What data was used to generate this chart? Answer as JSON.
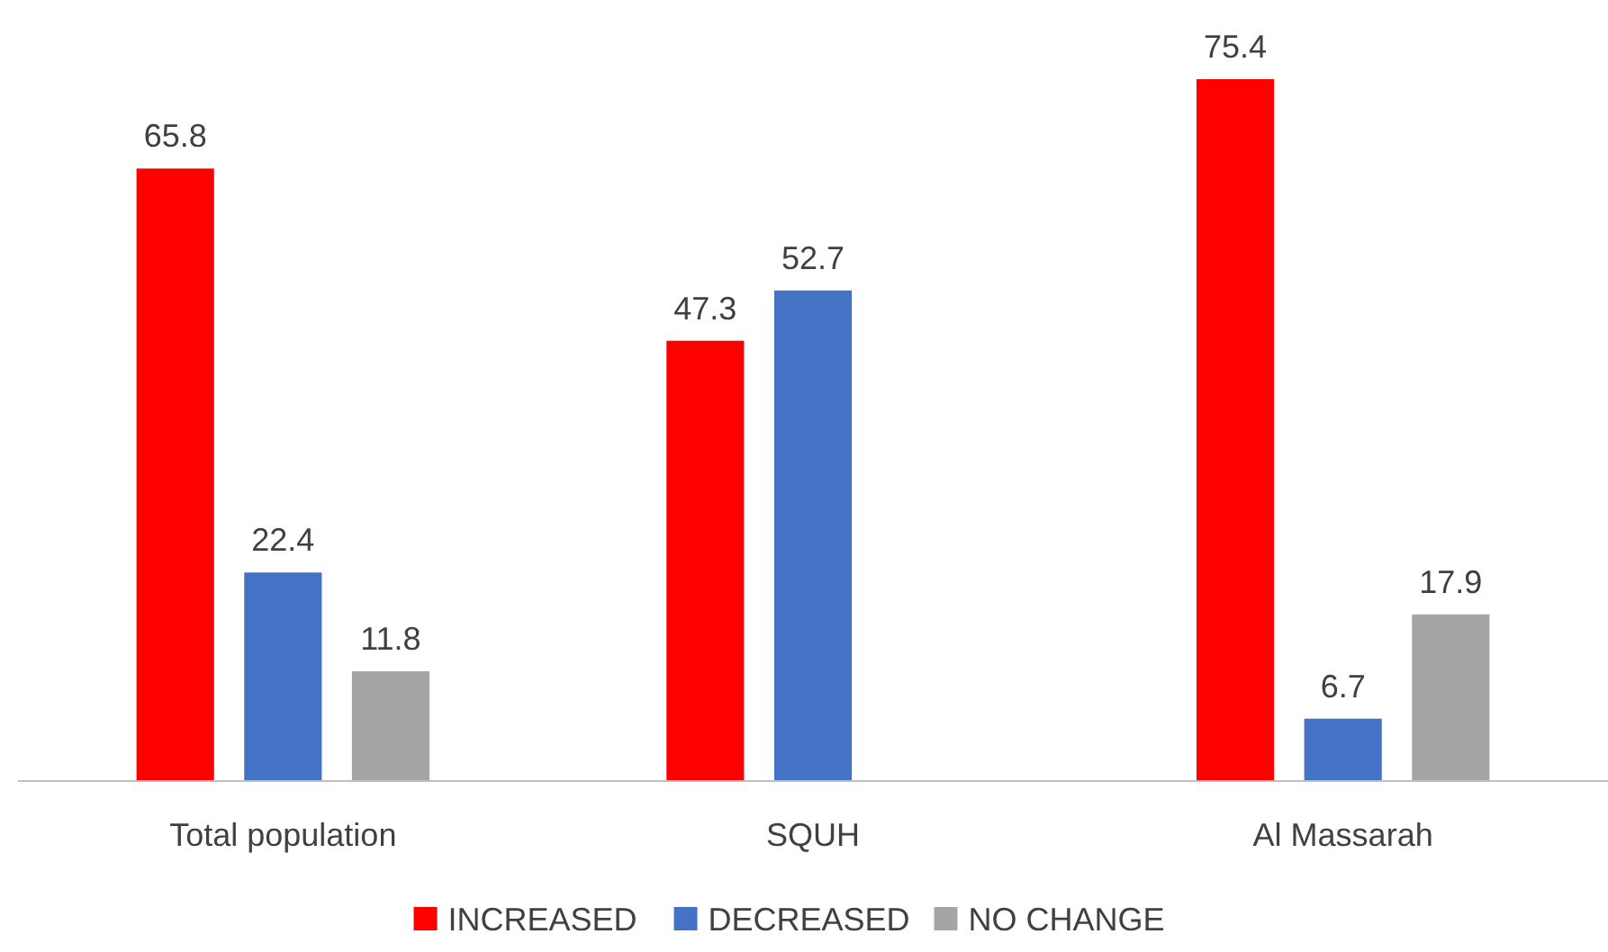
{
  "chart_data": {
    "type": "bar",
    "categories": [
      "Total population",
      "SQUH",
      "Al Massarah"
    ],
    "series": [
      {
        "name": "INCREASED",
        "color": "#ff0000",
        "values": [
          65.8,
          47.3,
          75.4
        ]
      },
      {
        "name": "DECREASED",
        "color": "#4472c4",
        "values": [
          22.4,
          52.7,
          6.7
        ]
      },
      {
        "name": "NO CHANGE",
        "color": "#a5a5a5",
        "values": [
          11.8,
          null,
          17.9
        ]
      }
    ],
    "data_labels": true,
    "legend": "bottom"
  }
}
